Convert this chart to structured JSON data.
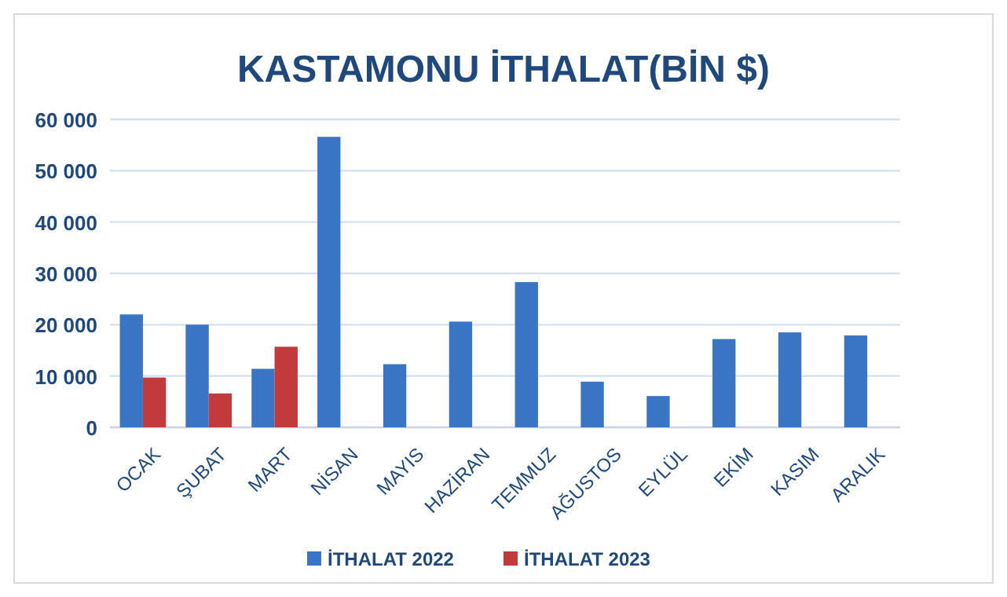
{
  "chart_data": {
    "type": "bar",
    "title": "KASTAMONU İTHALAT(BİN $)",
    "categories": [
      "OCAK",
      "ŞUBAT",
      "MART",
      "NİSAN",
      "MAYIS",
      "HAZİRAN",
      "TEMMUZ",
      "AĞUSTOS",
      "EYLÜL",
      "EKİM",
      "KASIM",
      "ARALIK"
    ],
    "series": [
      {
        "name": "İTHALAT 2022",
        "color": "#3a75c4",
        "values": [
          22000,
          20000,
          11400,
          56600,
          12300,
          20600,
          28300,
          8900,
          6100,
          17200,
          18500,
          17900
        ]
      },
      {
        "name": "İTHALAT 2023",
        "color": "#c23b3b",
        "values": [
          9700,
          6600,
          15700,
          null,
          null,
          null,
          null,
          null,
          null,
          null,
          null,
          null
        ]
      }
    ],
    "ylim": [
      0,
      60000
    ],
    "yticks": [
      0,
      {
        "value": 10000,
        "label": "10 000"
      },
      {
        "value": 20000,
        "label": "20 000"
      },
      {
        "value": 30000,
        "label": "30 000"
      },
      {
        "value": 40000,
        "label": "40 000"
      },
      {
        "value": 50000,
        "label": "50 000"
      },
      {
        "value": 60000,
        "label": "60 000"
      }
    ],
    "grid": "y",
    "legend": "bottom"
  }
}
